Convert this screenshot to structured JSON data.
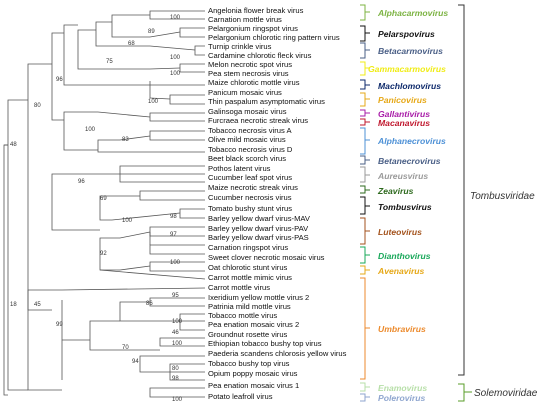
{
  "taxa": [
    {
      "name": "Angelonia flower break virus",
      "color": "#111111"
    },
    {
      "name": "Carnation mottle virus",
      "color": "#111111"
    },
    {
      "name": "Pelargonium ringspot virus",
      "color": "#111111"
    },
    {
      "name": "Pelargonium chlorotic ring pattern virus",
      "color": "#111111"
    },
    {
      "name": "Turnip crinkle virus",
      "color": "#111111"
    },
    {
      "name": "Cardamine chlorotic fleck virus",
      "color": "#111111"
    },
    {
      "name": "Melon necrotic spot virus",
      "color": "#111111"
    },
    {
      "name": "Pea stem necrosis virus",
      "color": "#111111"
    },
    {
      "name": "Maize chlorotic mottle virus",
      "color": "#111111"
    },
    {
      "name": "Panicum mosaic virus",
      "color": "#111111"
    },
    {
      "name": "Thin paspalum asymptomatic virus",
      "color": "#111111"
    },
    {
      "name": "Galinsoga mosaic virus",
      "color": "#111111"
    },
    {
      "name": "Furcraea necrotic streak virus",
      "color": "#111111"
    },
    {
      "name": "Tobacco necrosis virus A",
      "color": "#111111"
    },
    {
      "name": "Olive mild mosaic virus",
      "color": "#111111"
    },
    {
      "name": "Tobacco necrosis virus D",
      "color": "#111111"
    },
    {
      "name": "Beet black scorch virus",
      "color": "#111111"
    },
    {
      "name": "Pothos latent virus",
      "color": "#111111"
    },
    {
      "name": "Cucumber leaf spot virus",
      "color": "#111111"
    },
    {
      "name": "Maize necrotic streak virus",
      "color": "#111111"
    },
    {
      "name": "Cucumber necrosis virus",
      "color": "#111111"
    },
    {
      "name": "Tomato bushy stunt virus",
      "color": "#111111"
    },
    {
      "name": "Barley yellow dwarf virus-MAV",
      "color": "#111111"
    },
    {
      "name": "Barley yellow dwarf virus-PAV",
      "color": "#111111"
    },
    {
      "name": "Barley yellow dwarf virus-PAS",
      "color": "#111111"
    },
    {
      "name": "Carnation ringspot virus",
      "color": "#111111"
    },
    {
      "name": "Sweet clover necrotic mosaic virus",
      "color": "#111111"
    },
    {
      "name": "Oat chlorotic stunt virus",
      "color": "#111111"
    },
    {
      "name": "Carrot mottle mimic virus",
      "color": "#111111"
    },
    {
      "name": "Carrot mottle virus",
      "color": "#111111"
    },
    {
      "name": "Ixeridium yellow mottle virus 2",
      "color": "#111111"
    },
    {
      "name": "Patrinia mild mottle virus",
      "color": "#111111"
    },
    {
      "name": "Tobacco mottle virus",
      "color": "#111111"
    },
    {
      "name": "Pea enation mosaic virus 2",
      "color": "#111111"
    },
    {
      "name": "Groundnut rosette virus",
      "color": "#111111"
    },
    {
      "name": "Ethiopian tobacco bushy top virus",
      "color": "#111111"
    },
    {
      "name": "Paederia scandens chlorosis yellow virus",
      "color": "#e8221b"
    },
    {
      "name": "Tobacco bushy top virus",
      "color": "#111111"
    },
    {
      "name": "Opium poppy mosaic virus",
      "color": "#111111"
    },
    {
      "name": "Pea enation mosaic virus 1",
      "color": "#111111"
    },
    {
      "name": "Potato leafroll virus",
      "color": "#111111"
    }
  ],
  "bootstrap": [
    "100",
    "89",
    "68",
    "75",
    "96",
    "80",
    "48",
    "100",
    "100",
    "100",
    "100",
    "83",
    "96",
    "69",
    "100",
    "98",
    "97",
    "92",
    "100",
    "18",
    "45",
    "99",
    "95",
    "86",
    "100",
    "46",
    "70",
    "94",
    "80",
    "100",
    "98",
    "100"
  ],
  "genera": [
    {
      "name": "Alphacarmovirus",
      "color": "#7cb342"
    },
    {
      "name": "Pelarspovirus",
      "color": "#111111"
    },
    {
      "name": "Betacarmovirus",
      "color": "#4a5f86"
    },
    {
      "name": "Gammacarmovirus",
      "color": "#f0ec14"
    },
    {
      "name": "Machlomovirus",
      "color": "#0e2a6b"
    },
    {
      "name": "Panicovirus",
      "color": "#e6a817"
    },
    {
      "name": "Gallantivirus",
      "color": "#a81ca8"
    },
    {
      "name": "Macanavirus",
      "color": "#c0182e"
    },
    {
      "name": "Alphanecrovirus",
      "color": "#4c90d6"
    },
    {
      "name": "Betanecrovirus",
      "color": "#4a5f86"
    },
    {
      "name": "Aureusvirus",
      "color": "#9a9a9a"
    },
    {
      "name": "Zeavirus",
      "color": "#2e6a1e"
    },
    {
      "name": "Tombusvirus",
      "color": "#111111"
    },
    {
      "name": "Luteovirus",
      "color": "#a3521c"
    },
    {
      "name": "Dianthovirus",
      "color": "#19a85a"
    },
    {
      "name": "Avenavirus",
      "color": "#e6a817"
    },
    {
      "name": "Umbravirus",
      "color": "#ec8a2c"
    },
    {
      "name": "Enamovirus",
      "color": "#b7dfa8"
    },
    {
      "name": "Polerovirus",
      "color": "#8fa6cf"
    }
  ],
  "families": [
    {
      "name": "Tombusviridae",
      "color": "#333333"
    },
    {
      "name": "Solemoviridae",
      "color": "#5a9e2a"
    }
  ]
}
